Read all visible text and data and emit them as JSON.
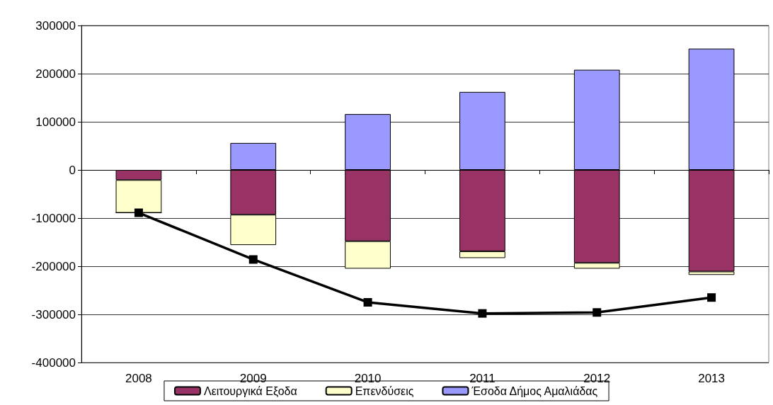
{
  "chart_data": {
    "type": "bar",
    "stacked": true,
    "categories": [
      "2008",
      "2009",
      "2010",
      "2011",
      "2012",
      "2013"
    ],
    "series": [
      {
        "name": "Λειτουργικά Εξοδα",
        "color": "#993366",
        "values": [
          -21000,
          -93000,
          -148000,
          -169000,
          -193000,
          -211000
        ]
      },
      {
        "name": "Επενδύσεις",
        "color": "#ffffcc",
        "values": [
          -68000,
          -63000,
          -57000,
          -14000,
          -12000,
          -7000
        ]
      },
      {
        "name": "Έσοδα Δήμος Αμαλιάδας",
        "color": "#9999ff",
        "values": [
          0,
          56000,
          116000,
          162000,
          208000,
          252000
        ]
      },
      {
        "type": "line",
        "color": "#000000",
        "marker": "square",
        "line_style": "solid",
        "values": [
          -89000,
          -186000,
          -275000,
          -298000,
          -296000,
          -265000
        ]
      }
    ],
    "ylim": [
      -400000,
      300000
    ],
    "yticks": [
      -400000,
      -300000,
      -200000,
      -100000,
      0,
      100000,
      200000,
      300000
    ],
    "grid": "y",
    "legend": "bottom"
  }
}
